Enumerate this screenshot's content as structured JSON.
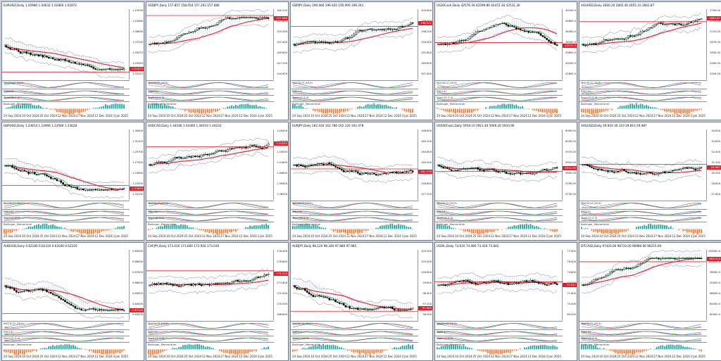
{
  "panels": [
    {
      "header": "EURUSD,Daily 1.02980 1.03032 1.02800 1.02872",
      "prices": [
        "1.12090",
        "1.10460",
        "1.08830",
        "1.07200",
        "1.05570",
        "1.03940",
        "1.02310"
      ],
      "last": "1.02872",
      "last_color": "#e0202a",
      "dates": [
        "24 Sep 2024",
        "10 Oct 2024",
        "25 Oct 2024",
        "12 Nov 2024",
        "27 Nov 2024",
        "12 Dec 2024",
        "3 Jan 2025"
      ],
      "trend": "down",
      "osc": "histogram"
    },
    {
      "header": "USDJPY,Daily 157.857 158.054 157.263 157.686",
      "prices": [
        "160.200",
        "157.600",
        "155.000",
        "152.400",
        "149.800",
        "147.200",
        "144.600"
      ],
      "last": "157.686",
      "last_color": "#e0202a",
      "dates": [
        "24 Sep 2024",
        "10 Oct 2024",
        "25 Oct 2024",
        "12 Nov 2024",
        "27 Nov 2024",
        "12 Dec 2024",
        "3 Jan 2025"
      ],
      "trend": "up",
      "osc": "histogram"
    },
    {
      "header": "GBPJPY,Daily 196.060 196.420 195.900 196.241",
      "prices": [
        "200.600",
        "198.400",
        "196.200",
        "194.000",
        "191.800",
        "189.600",
        "187.400"
      ],
      "last": "196.241",
      "last_color": "#e0202a",
      "dates": [
        "24 Sep 2024",
        "10 Oct 2024",
        "25 Oct 2024",
        "12 Nov 2024",
        "27 Nov 2024",
        "12 Dec 2024",
        "3 Jan 2025"
      ],
      "trend": "up",
      "osc": "histogram"
    },
    {
      "header": "US30Cash,Daily 42576.30 42599.80 42472.30 42531.30",
      "prices": [
        "45200.0",
        "44800.0",
        "44400.0",
        "44000.0",
        "43600.0",
        "43200.0",
        "42800.0"
      ],
      "last": "42531.3",
      "last_color": "#e0202a",
      "dates": [
        "24 Sep 2024",
        "10 Oct 2024",
        "25 Oct 2024",
        "12 Nov 2024",
        "27 Nov 2024",
        "12 Dec 2024",
        "3 Jan 2025"
      ],
      "trend": "updown",
      "osc": "histogram"
    },
    {
      "header": "XAUUSD,Daily 2660.20 2665.40 2655.10 2662.87",
      "prices": [
        "2790.00",
        "2750.00",
        "2710.00",
        "2670.00",
        "2630.00",
        "2590.00",
        "2550.00"
      ],
      "last": "2662.87",
      "last_color": "#e0202a",
      "dates": [
        "24 Sep 2024",
        "10 Oct 2024",
        "25 Oct 2024",
        "12 Nov 2024",
        "27 Nov 2024",
        "12 Dec 2024",
        "3 Jan 2025"
      ],
      "trend": "up",
      "osc": "histogram"
    },
    {
      "header": "GBPUSD,Daily 1.23814 1.23906 1.23560 1.23628",
      "prices": [
        "1.34500",
        "1.32100",
        "1.29700",
        "1.27300",
        "1.24900",
        "1.22500",
        "1.20100"
      ],
      "last": "1.23628",
      "last_color": "#e0202a",
      "dates": [
        "24 Sep 2024",
        "10 Oct 2024",
        "25 Oct 2024",
        "12 Nov 2024",
        "27 Nov 2024",
        "12 Dec 2024",
        "3 Jan 2025"
      ],
      "trend": "down",
      "osc": "histogram"
    },
    {
      "header": "USDCAD,Daily 1.44180 1.44360 1.44010 1.44232",
      "prices": [
        "1.45400",
        "1.44200",
        "1.43000",
        "1.41800",
        "1.40600",
        "1.39400",
        "1.38200"
      ],
      "last": "1.44232",
      "last_color": "#e0202a",
      "dates": [
        "24 Sep 2024",
        "10 Oct 2024",
        "25 Oct 2024",
        "12 Nov 2024",
        "27 Nov 2024",
        "12 Dec 2024",
        "3 Jan 2025"
      ],
      "trend": "up",
      "osc": "histogram"
    },
    {
      "header": "EURJPY,Daily 162.420 162.780 162.120 162.478",
      "prices": [
        "166.800",
        "165.200",
        "163.600",
        "162.000",
        "160.400",
        "158.800",
        "157.200"
      ],
      "last": "162.478",
      "last_color": "#e0202a",
      "dates": [
        "24 Sep 2024",
        "10 Oct 2024",
        "25 Oct 2024",
        "12 Nov 2024",
        "27 Nov 2024",
        "12 Dec 2024",
        "3 Jan 2025"
      ],
      "trend": "flat",
      "osc": "histogram"
    },
    {
      "header": "US500Cash,Daily 5918.10 5921.40 5906.20 5910.90",
      "prices": [
        "6090.00",
        "6030.00",
        "5970.00",
        "5910.00",
        "5850.00",
        "5790.00",
        "5730.00"
      ],
      "last": "5910.90",
      "last_color": "#e0202a",
      "dates": [
        "24 Sep 2024",
        "10 Oct 2024",
        "25 Oct 2024",
        "12 Nov 2024",
        "27 Nov 2024",
        "12 Dec 2024",
        "3 Jan 2025"
      ],
      "trend": "flat",
      "osc": "histogram"
    },
    {
      "header": "XAGUSD,Daily 29.920 30.110 29.810 29.987",
      "prices": [
        "34.800",
        "33.600",
        "32.400",
        "31.200",
        "30.000",
        "28.800",
        "27.600"
      ],
      "last": "29.987",
      "last_color": "#e0202a",
      "dates": [
        "24 Sep 2024",
        "10 Oct 2024",
        "25 Oct 2024",
        "12 Nov 2024",
        "27 Nov 2024",
        "12 Dec 2024",
        "3 Jan 2025"
      ],
      "trend": "flat",
      "osc": "histogram"
    },
    {
      "header": "AUDUSD,Daily 0.62180 0.62310 0.62040 0.62105",
      "prices": [
        "0.69000",
        "0.68000",
        "0.67000",
        "0.66000",
        "0.65000",
        "0.64000",
        "0.63000"
      ],
      "last": "0.62105",
      "last_color": "#e0202a",
      "dates": [
        "24 Sep 2024",
        "10 Oct 2024",
        "25 Oct 2024",
        "12 Nov 2024",
        "27 Nov 2024",
        "12 Dec 2024",
        "3 Jan 2025"
      ],
      "trend": "down",
      "osc": "histogram"
    },
    {
      "header": "CHFJPY,Daily 173.420 173.660 172.910 173.010",
      "prices": [
        "178.400",
        "176.800",
        "175.200",
        "173.600",
        "172.000",
        "170.400",
        "168.800"
      ],
      "last": "173.010",
      "last_color": "#e0202a",
      "dates": [
        "24 Sep 2024",
        "10 Oct 2024",
        "25 Oct 2024",
        "12 Nov 2024",
        "27 Nov 2024",
        "12 Dec 2024",
        "3 Jan 2025"
      ],
      "trend": "flat",
      "osc": "histogram"
    },
    {
      "header": "AUDJPY,Daily 98.120 98.340 97.880 97.985",
      "prices": [
        "103.200",
        "102.000",
        "100.800",
        "99.600",
        "98.400",
        "97.200",
        "96.000"
      ],
      "last": "97.985",
      "last_color": "#e0202a",
      "dates": [
        "24 Sep 2024",
        "10 Oct 2024",
        "25 Oct 2024",
        "12 Nov 2024",
        "27 Nov 2024",
        "12 Dec 2024",
        "3 Jan 2025"
      ],
      "trend": "down",
      "osc": "histogram"
    },
    {
      "header": "USOIL,Daily 73.620 74.080 73.410 73.842",
      "prices": [
        "77.400",
        "76.000",
        "74.600",
        "73.200",
        "71.800",
        "70.400",
        "69.000"
      ],
      "last": "73.842",
      "last_color": "#e0202a",
      "dates": [
        "24 Sep 2024",
        "10 Oct 2024",
        "25 Oct 2024",
        "12 Nov 2024",
        "27 Nov 2024",
        "12 Dec 2024",
        "3 Jan 2025"
      ],
      "trend": "flat",
      "osc": "histogram"
    },
    {
      "header": "BTCUSD,Daily 97420.00 98710.00 96980.00 98215.00",
      "prices": [
        "104000.0",
        "100000.0",
        "96000.0",
        "92000.0",
        "88000.0",
        "84000.0",
        "80000.0"
      ],
      "last": "98215.0",
      "last_color": "#e0202a",
      "dates": [
        "24 Sep 2024",
        "10 Oct 2024",
        "25 Oct 2024",
        "12 Nov 2024",
        "27 Nov 2024",
        "12 Dec 2024",
        "3 Jan 2025"
      ],
      "trend": "up",
      "osc": "histogram"
    }
  ],
  "indicator_labels": {
    "ma": "MACD(12,26,9)",
    "rsi": "RSI(14)",
    "stoch": "Stoch(5,3,3)",
    "mom": "Bollinger_Momentum"
  },
  "colors": {
    "bull": "#ffffff",
    "bear": "#000000",
    "ma_red": "#e0202a",
    "ma_green": "#1f9d3a",
    "band_gray": "#9aa3ad",
    "cloud": "#9db0d8",
    "hist_up": "#1aa6a0",
    "hist_dn": "#ff7a2e",
    "hline": "#e0202a"
  }
}
